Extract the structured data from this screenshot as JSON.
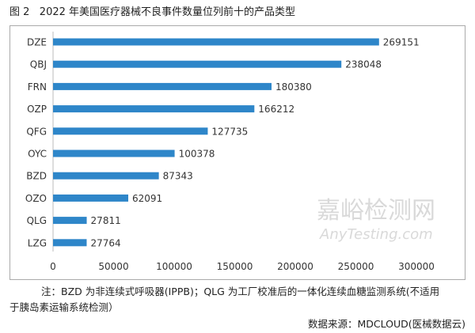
{
  "chart_data": {
    "type": "bar",
    "orientation": "horizontal",
    "title": "图 2   2022 年美国医疗器械不良事件数量位列前十的产品类型",
    "categories": [
      "DZE",
      "QBJ",
      "FRN",
      "OZP",
      "QFG",
      "OYC",
      "BZD",
      "OZO",
      "QLG",
      "LZG"
    ],
    "values": [
      269151,
      238048,
      180380,
      166212,
      127735,
      100378,
      87343,
      62091,
      27811,
      27764
    ],
    "xlim": [
      0,
      300000
    ],
    "xticks": [
      "0",
      "50000",
      "100000",
      "150000",
      "200000",
      "250000",
      "300000"
    ],
    "bar_color": "#2e86c9",
    "grid": false
  },
  "note_line1": "注：BZD 为非连续式呼吸器(IPPB)；QLG 为工厂校准后的一体化连续血糖监测系统(不适用",
  "note_line2": "于胰岛素运输系统检测）",
  "source": "数据来源：MDCLOUD(医械数据云)",
  "watermark": "嘉峪检测网",
  "watermark_url": "AnyTesting.com"
}
